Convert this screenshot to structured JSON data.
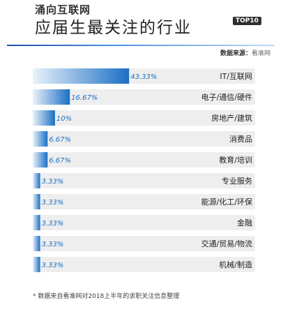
{
  "header": {
    "brand": "涌向互联网",
    "headline": "应届生最关注的行业",
    "badge": "TOP10",
    "source_label": "数据来源：",
    "source_site": "看准网"
  },
  "footnote": "* 数据来自看准网对2018上半年的求职关注信息整理",
  "colors": {
    "bar_dark": "#1b6fc4",
    "bar_light": "#e9f2fb",
    "track": "#eeeeee",
    "value_text": "#1c6fc2"
  },
  "chart_data": {
    "type": "bar",
    "orientation": "horizontal",
    "categories": [
      "IT/互联网",
      "电子/通信/硬件",
      "房地产/建筑",
      "消费品",
      "教育/培训",
      "专业服务",
      "能源/化工/环保",
      "金融",
      "交通/贸易/物流",
      "机械/制造"
    ],
    "values": [
      43.33,
      16.67,
      10,
      6.67,
      6.67,
      3.33,
      3.33,
      3.33,
      3.33,
      3.33
    ],
    "value_labels": [
      "43.33%",
      "16.67%",
      "10%",
      "6.67%",
      "6.67%",
      "3.33%",
      "3.33%",
      "3.33%",
      "3.33%",
      "3.33%"
    ],
    "xlim": [
      0,
      100
    ]
  }
}
